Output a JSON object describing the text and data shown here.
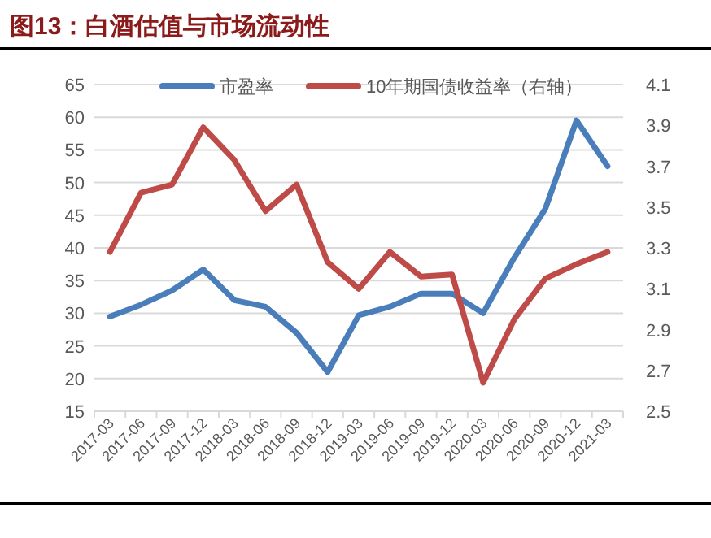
{
  "chart_data": {
    "type": "line",
    "title": "图13：白酒估值与市场流动性",
    "categories": [
      "2017-03",
      "2017-06",
      "2017-09",
      "2017-12",
      "2018-03",
      "2018-06",
      "2018-09",
      "2018-12",
      "2019-03",
      "2019-06",
      "2019-09",
      "2019-12",
      "2020-03",
      "2020-06",
      "2020-09",
      "2020-12",
      "2021-03"
    ],
    "series": [
      {
        "name": "市盈率",
        "color": "#4a7ebb",
        "values": [
          29.5,
          31.3,
          33.5,
          36.7,
          32,
          31,
          27,
          21,
          29.7,
          31,
          33,
          33,
          30,
          38.5,
          46,
          59.5,
          52.5
        ]
      },
      {
        "name": "10年期国债收益率（右轴）",
        "color": "#be4b48",
        "axis": "y2",
        "values": [
          3.28,
          3.57,
          3.61,
          3.89,
          3.73,
          3.48,
          3.61,
          3.23,
          3.1,
          3.28,
          3.16,
          3.17,
          2.64,
          2.95,
          3.15,
          3.22,
          3.28
        ]
      }
    ],
    "ylim": [
      15,
      65
    ],
    "yticks": [
      15,
      20,
      25,
      30,
      35,
      40,
      45,
      50,
      55,
      60,
      65
    ],
    "y2lim": [
      2.5,
      4.1
    ],
    "y2ticks": [
      2.5,
      2.7,
      2.9,
      3.1,
      3.3,
      3.5,
      3.7,
      3.9,
      4.1
    ],
    "grid": "y",
    "legend": "top",
    "marker": "none",
    "line_style": "solid"
  }
}
